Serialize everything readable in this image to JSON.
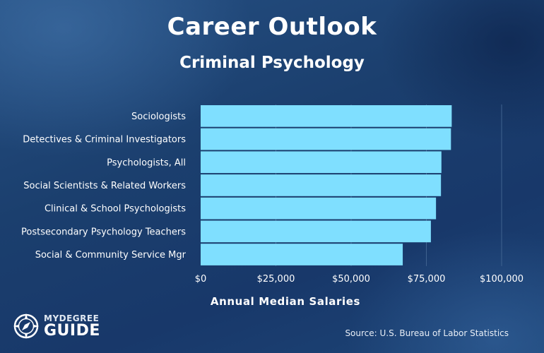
{
  "title": "Career Outlook",
  "subtitle": "Criminal Psychology",
  "source": "Source: U.S. Bureau of Labor Statistics",
  "logo": {
    "line1": "MYDEGREE",
    "line2": "GUIDE",
    "icon": "compass-icon"
  },
  "colors": {
    "bar": "#7fdfff",
    "grid": "#3f628f",
    "text": "#ffffff"
  },
  "chart_data": {
    "type": "bar",
    "orientation": "horizontal",
    "categories": [
      "Sociologists",
      "Detectives & Criminal Investigators",
      "Psychologists, All",
      "Social Scientists & Related Workers",
      "Clinical & School Psychologists",
      "Postsecondary Psychology Teachers",
      "Social & Community Service Mgr"
    ],
    "values": [
      83420,
      83170,
      80000,
      79850,
      78200,
      76500,
      67150
    ],
    "xlabel": "Annual Median Salaries",
    "ylabel": "",
    "xlim": [
      0,
      100000
    ],
    "xticks": [
      0,
      25000,
      50000,
      75000,
      100000
    ],
    "xtick_labels": [
      "$0",
      "$25,000",
      "$50,000",
      "$75,000",
      "$100,000"
    ],
    "grid": true,
    "legend": "none"
  }
}
